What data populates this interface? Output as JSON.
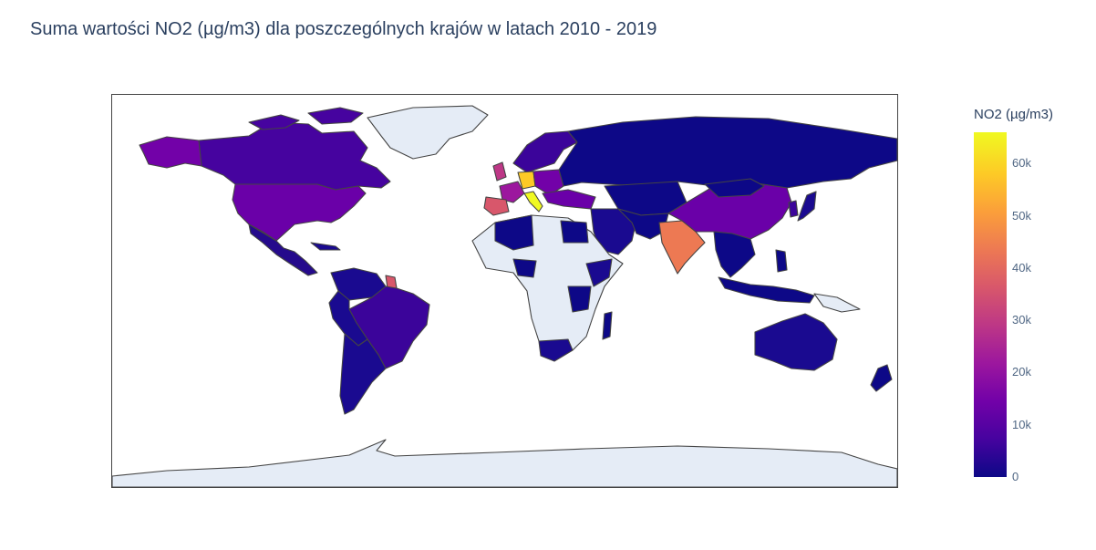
{
  "title": "Suma wartości NO2 (µg/m3) dla poszczególnych krajów w latach 2010 - 2019",
  "map": {
    "type": "choropleth",
    "projection": "equirectangular-world",
    "metric": "NO2 (µg/m3)",
    "colorscale": [
      "#0d0887",
      "#46039f",
      "#7201a8",
      "#9c179e",
      "#bd3786",
      "#d8576b",
      "#ed7953",
      "#fb9f3a",
      "#fdca26",
      "#f0f921"
    ],
    "no_data_color": "#e5ecf6",
    "border_color": "#444444",
    "range": [
      0,
      66000
    ]
  },
  "colorbar": {
    "title": "NO2 (µg/m3)",
    "ticks": [
      {
        "label": "0",
        "value": 0
      },
      {
        "label": "10k",
        "value": 10000
      },
      {
        "label": "20k",
        "value": 20000
      },
      {
        "label": "30k",
        "value": 30000
      },
      {
        "label": "40k",
        "value": 40000
      },
      {
        "label": "50k",
        "value": 50000
      },
      {
        "label": "60k",
        "value": 60000
      }
    ]
  }
}
